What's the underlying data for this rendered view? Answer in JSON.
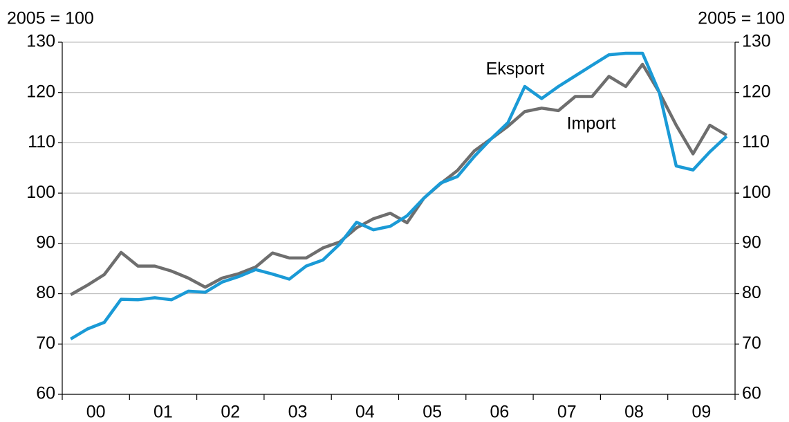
{
  "chart_data": {
    "type": "line",
    "y_label": "2005 = 100",
    "y2_label": "2005 = 100",
    "categories": [
      "00",
      null,
      null,
      null,
      "01",
      null,
      null,
      null,
      "02",
      null,
      null,
      null,
      "03",
      null,
      null,
      null,
      "04",
      null,
      null,
      null,
      "05",
      null,
      null,
      null,
      "06",
      null,
      null,
      null,
      "07",
      null,
      null,
      null,
      "08",
      null,
      null,
      null,
      "09",
      null,
      null,
      null
    ],
    "series": [
      {
        "name": "Import",
        "color": "#6e6e6e",
        "values": [
          79.8,
          81.7,
          83.8,
          88.2,
          85.5,
          85.5,
          84.5,
          83.1,
          81.3,
          83.1,
          84.0,
          85.3,
          88.1,
          87.1,
          87.1,
          89.1,
          90.3,
          93.1,
          94.9,
          96.0,
          94.1,
          99.0,
          101.9,
          104.5,
          108.4,
          110.8,
          113.3,
          116.2,
          116.9,
          116.4,
          119.2,
          119.2,
          123.2,
          121.2,
          125.6,
          120.0,
          113.5,
          107.8,
          113.5,
          111.5
        ]
      },
      {
        "name": "Eksport",
        "color": "#1a9ad6",
        "values": [
          71.0,
          73.0,
          74.3,
          78.9,
          78.8,
          79.2,
          78.8,
          80.5,
          80.3,
          82.3,
          83.4,
          84.8,
          83.9,
          82.9,
          85.5,
          86.7,
          89.9,
          94.2,
          92.7,
          93.4,
          95.5,
          99.0,
          102.0,
          103.3,
          107.3,
          110.8,
          114.0,
          121.2,
          118.8,
          121.2,
          123.3,
          125.4,
          127.5,
          127.8,
          127.8,
          120.0,
          105.4,
          104.6,
          108.2,
          111.3
        ]
      }
    ],
    "annotations": [
      "Eksport",
      "Import"
    ],
    "ylim": [
      60,
      130
    ],
    "yticks": [
      60,
      70,
      80,
      90,
      100,
      110,
      120,
      130
    ],
    "y2lim": [
      60,
      130
    ],
    "y2ticks": [
      60,
      70,
      80,
      90,
      100,
      110,
      120,
      130
    ],
    "grid": true
  }
}
